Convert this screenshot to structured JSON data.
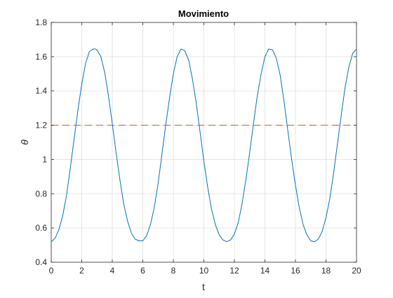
{
  "chart_data": {
    "type": "line",
    "title": "Movimiento",
    "xlabel": "t",
    "ylabel": "θ",
    "xlim": [
      0,
      20
    ],
    "ylim": [
      0.4,
      1.8
    ],
    "xticks": [
      0,
      2,
      4,
      6,
      8,
      10,
      12,
      14,
      16,
      18,
      20
    ],
    "yticks": [
      0.4,
      0.6,
      0.8,
      1,
      1.2,
      1.4,
      1.6,
      1.8
    ],
    "grid": true,
    "series": [
      {
        "color": "#0072BD",
        "style": "solid",
        "x": [
          0,
          0.25,
          0.5,
          0.75,
          1,
          1.25,
          1.5,
          1.75,
          2,
          2.25,
          2.5,
          2.75,
          2.9,
          3.0,
          3.25,
          3.5,
          3.75,
          4,
          4.25,
          4.5,
          4.75,
          5,
          5.25,
          5.5,
          5.75,
          6,
          6.25,
          6.5,
          6.75,
          7,
          7.25,
          7.5,
          7.75,
          8,
          8.25,
          8.5,
          8.75,
          9,
          9.25,
          9.5,
          9.75,
          10,
          10.25,
          10.5,
          10.75,
          11,
          11.25,
          11.5,
          11.75,
          12,
          12.25,
          12.5,
          12.75,
          13,
          13.25,
          13.5,
          13.75,
          14,
          14.25,
          14.5,
          14.75,
          15,
          15.25,
          15.5,
          15.75,
          16,
          16.25,
          16.5,
          16.75,
          17,
          17.25,
          17.5,
          17.75,
          18,
          18.25,
          18.5,
          18.75,
          19,
          19.25,
          19.5,
          19.75,
          20
        ],
        "y": [
          0.52,
          0.54,
          0.59,
          0.67,
          0.79,
          0.95,
          1.12,
          1.29,
          1.44,
          1.56,
          1.63,
          1.645,
          1.645,
          1.64,
          1.6,
          1.51,
          1.37,
          1.21,
          1.04,
          0.88,
          0.74,
          0.64,
          0.57,
          0.535,
          0.525,
          0.525,
          0.555,
          0.62,
          0.72,
          0.86,
          1.03,
          1.2,
          1.36,
          1.5,
          1.6,
          1.645,
          1.635,
          1.58,
          1.47,
          1.33,
          1.16,
          0.99,
          0.84,
          0.71,
          0.62,
          0.56,
          0.53,
          0.52,
          0.53,
          0.565,
          0.63,
          0.74,
          0.88,
          1.04,
          1.21,
          1.37,
          1.5,
          1.6,
          1.645,
          1.64,
          1.59,
          1.49,
          1.34,
          1.17,
          1.0,
          0.85,
          0.72,
          0.62,
          0.56,
          0.525,
          0.52,
          0.535,
          0.58,
          0.66,
          0.77,
          0.92,
          1.09,
          1.26,
          1.42,
          1.54,
          1.62,
          1.645
        ]
      },
      {
        "color": "#D95319",
        "style": "dashed",
        "x": [
          0,
          20
        ],
        "y": [
          1.2,
          1.2
        ]
      }
    ]
  }
}
